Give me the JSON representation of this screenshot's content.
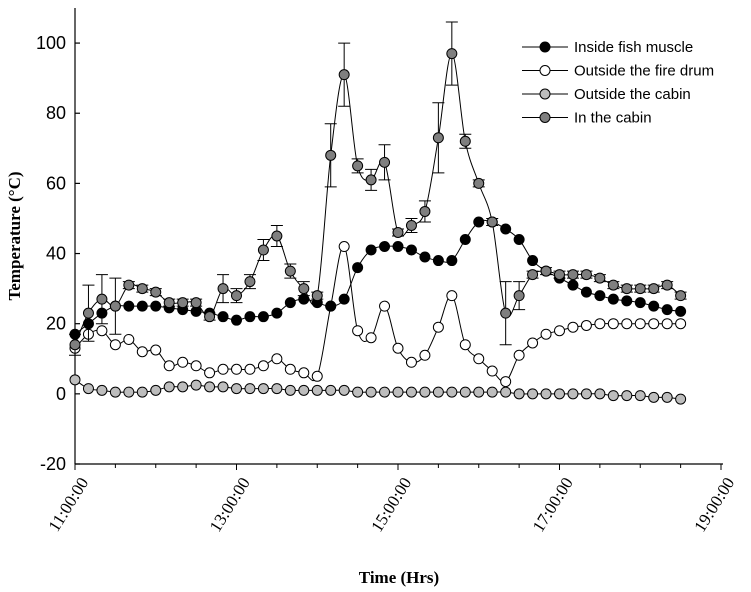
{
  "chart_data": {
    "type": "line",
    "title": "",
    "xlabel": "Time (Hrs)",
    "ylabel": "Temperature (°C)",
    "xlim": [
      "11:00:00",
      "19:00:00"
    ],
    "ylim": [
      -20,
      110
    ],
    "x_ticks": [
      "11:00:00",
      "13:00:00",
      "15:00:00",
      "17:00:00",
      "19:00:00"
    ],
    "y_ticks": [
      -20,
      0,
      20,
      40,
      60,
      80,
      100
    ],
    "grid": false,
    "legend_position": "top-right",
    "series": [
      {
        "name": "Inside fish muscle",
        "marker_color": "#000000",
        "x": [
          "11:00",
          "11:10",
          "11:20",
          "11:30",
          "11:40",
          "11:50",
          "12:00",
          "12:10",
          "12:20",
          "12:30",
          "12:40",
          "12:50",
          "13:00",
          "13:10",
          "13:20",
          "13:30",
          "13:40",
          "13:50",
          "14:00",
          "14:10",
          "14:20",
          "14:30",
          "14:40",
          "14:50",
          "15:00",
          "15:10",
          "15:20",
          "15:30",
          "15:40",
          "15:50",
          "16:00",
          "16:10",
          "16:20",
          "16:30",
          "16:40",
          "16:50",
          "17:00",
          "17:10",
          "17:20",
          "17:30",
          "17:40",
          "17:50",
          "18:00",
          "18:10",
          "18:20",
          "18:30"
        ],
        "values": [
          17,
          20,
          23,
          25,
          25,
          25,
          25,
          24.5,
          24,
          23.5,
          23,
          22,
          21,
          22,
          22,
          23,
          26,
          27,
          26,
          25,
          27,
          36,
          41,
          42,
          42,
          41,
          39,
          38,
          38,
          44,
          49,
          49,
          47,
          44,
          38,
          35,
          33,
          31,
          29,
          28,
          27,
          26.5,
          26,
          25,
          24,
          23.5
        ]
      },
      {
        "name": "Outside the fire drum",
        "marker_color": "#ffffff",
        "x": [
          "11:00",
          "11:10",
          "11:20",
          "11:30",
          "11:40",
          "11:50",
          "12:00",
          "12:10",
          "12:20",
          "12:30",
          "12:40",
          "12:50",
          "13:00",
          "13:10",
          "13:20",
          "13:30",
          "13:40",
          "13:50",
          "14:00",
          "14:10",
          "14:20",
          "14:30",
          "14:40",
          "14:50",
          "15:00",
          "15:10",
          "15:20",
          "15:30",
          "15:40",
          "15:50",
          "16:00",
          "16:10",
          "16:20",
          "16:30",
          "16:40",
          "16:50",
          "17:00",
          "17:10",
          "17:20",
          "17:30",
          "17:40",
          "17:50",
          "18:00",
          "18:10",
          "18:20",
          "18:30"
        ],
        "values": [
          13,
          17,
          18,
          14,
          15.5,
          12,
          12.5,
          8,
          9,
          8,
          6,
          7,
          7,
          7,
          8,
          10,
          7,
          6,
          5,
          25,
          42,
          18,
          16,
          25,
          13,
          9,
          11,
          19,
          28,
          14,
          10,
          6.5,
          3.5,
          11,
          14.5,
          17,
          18,
          19,
          19.5,
          20,
          20,
          20,
          20,
          20,
          20,
          20
        ]
      },
      {
        "name": "Outside the cabin",
        "marker_color": "#bdbdbd",
        "x": [
          "11:00",
          "11:10",
          "11:20",
          "11:30",
          "11:40",
          "11:50",
          "12:00",
          "12:10",
          "12:20",
          "12:30",
          "12:40",
          "12:50",
          "13:00",
          "13:10",
          "13:20",
          "13:30",
          "13:40",
          "13:50",
          "14:00",
          "14:10",
          "14:20",
          "14:30",
          "14:40",
          "14:50",
          "15:00",
          "15:10",
          "15:20",
          "15:30",
          "15:40",
          "15:50",
          "16:00",
          "16:10",
          "16:20",
          "16:30",
          "16:40",
          "16:50",
          "17:00",
          "17:10",
          "17:20",
          "17:30",
          "17:40",
          "17:50",
          "18:00",
          "18:10",
          "18:20",
          "18:30"
        ],
        "values": [
          4,
          1.5,
          1,
          0.5,
          0.5,
          0.5,
          1,
          2,
          2,
          2.5,
          2,
          2,
          1.5,
          1.5,
          1.5,
          1.5,
          1,
          1,
          1,
          1,
          1,
          0.5,
          0.5,
          0.5,
          0.5,
          0.5,
          0.5,
          0.5,
          0.5,
          0.5,
          0.5,
          0.5,
          0.5,
          0,
          0,
          0,
          0,
          0,
          0,
          0,
          -0.5,
          -0.5,
          -0.5,
          -1,
          -1,
          -1.5
        ]
      },
      {
        "name": "In the cabin",
        "marker_color": "#7f7f7f",
        "x": [
          "11:00",
          "11:10",
          "11:20",
          "11:30",
          "11:40",
          "11:50",
          "12:00",
          "12:10",
          "12:20",
          "12:30",
          "12:40",
          "12:50",
          "13:00",
          "13:10",
          "13:20",
          "13:30",
          "13:40",
          "13:50",
          "14:00",
          "14:10",
          "14:20",
          "14:30",
          "14:40",
          "14:50",
          "15:00",
          "15:10",
          "15:20",
          "15:30",
          "15:40",
          "15:50",
          "16:00",
          "16:10",
          "16:20",
          "16:30",
          "16:40",
          "16:50",
          "17:00",
          "17:10",
          "17:20",
          "17:30",
          "17:40",
          "17:50",
          "18:00",
          "18:10",
          "18:20",
          "18:30"
        ],
        "values": [
          14,
          23,
          27,
          25,
          31,
          30,
          29,
          26,
          26,
          26,
          22,
          30,
          28,
          32,
          41,
          45,
          35,
          30,
          28,
          68,
          91,
          65,
          61,
          66,
          46,
          48,
          52,
          73,
          97,
          72,
          60,
          49,
          23,
          28,
          34,
          35,
          34,
          34,
          34,
          33,
          31,
          30,
          30,
          30,
          31,
          28
        ],
        "error": [
          3,
          8,
          7,
          8,
          1,
          1,
          1,
          1,
          1,
          1,
          1,
          4,
          2,
          2,
          3,
          3,
          2,
          2,
          1,
          9,
          9,
          2,
          3,
          5,
          1,
          2,
          3,
          10,
          9,
          2,
          1,
          1,
          9,
          4,
          1,
          1,
          1,
          1,
          1,
          1,
          1,
          1,
          1,
          1,
          1,
          1
        ]
      }
    ]
  }
}
